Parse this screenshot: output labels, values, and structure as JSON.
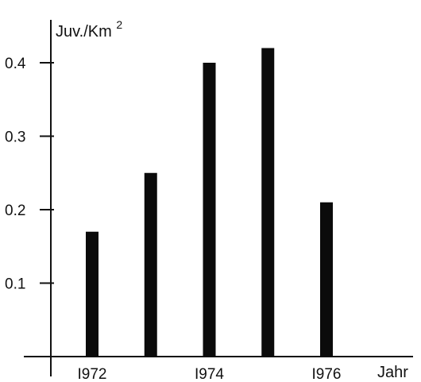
{
  "chart_data": {
    "type": "bar",
    "ylabel": {
      "base": "Juv./Km",
      "exponent": "2"
    },
    "xlabel": "Jahr",
    "x": [
      1972,
      1973,
      1974,
      1975,
      1976
    ],
    "values": [
      0.17,
      0.25,
      0.4,
      0.42,
      0.21
    ],
    "x_tick_labels": [
      {
        "value": 1972,
        "label": "I972"
      },
      {
        "value": 1974,
        "label": "I974"
      },
      {
        "value": 1976,
        "label": "I976"
      }
    ],
    "y_ticks": [
      {
        "value": 0.1,
        "label": "0.1"
      },
      {
        "value": 0.2,
        "label": "0.2"
      },
      {
        "value": 0.3,
        "label": "0.3"
      },
      {
        "value": 0.4,
        "label": "0.4"
      }
    ],
    "ylim": [
      0,
      0.45
    ],
    "grid": false,
    "colors": {
      "bars": "#0b0b0b",
      "axes": "#111111",
      "background": "#ffffff"
    }
  }
}
